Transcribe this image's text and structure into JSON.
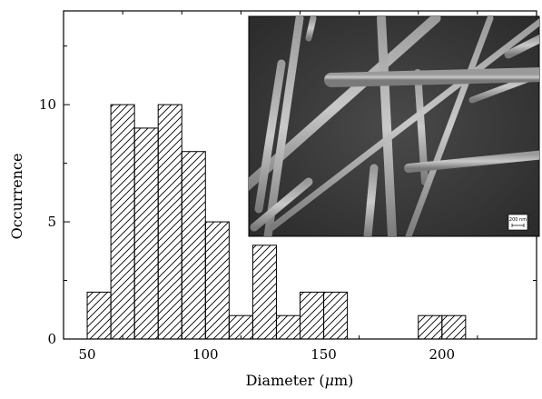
{
  "chart_data": {
    "type": "bar",
    "title": "",
    "xlabel": "Diameter (",
    "xlabel_greek": "μ",
    "xlabel_unit": "m)",
    "ylabel": "Occurrence",
    "xlim": [
      40,
      240
    ],
    "ylim": [
      0,
      14
    ],
    "bin_width": 10,
    "x_ticks": [
      50,
      100,
      150,
      200
    ],
    "y_ticks": [
      0,
      5,
      10
    ],
    "bins": [
      {
        "start": 50,
        "count": 2
      },
      {
        "start": 60,
        "count": 10
      },
      {
        "start": 70,
        "count": 9
      },
      {
        "start": 80,
        "count": 10
      },
      {
        "start": 90,
        "count": 8
      },
      {
        "start": 100,
        "count": 5
      },
      {
        "start": 110,
        "count": 1
      },
      {
        "start": 120,
        "count": 4
      },
      {
        "start": 130,
        "count": 1
      },
      {
        "start": 140,
        "count": 2
      },
      {
        "start": 150,
        "count": 2
      },
      {
        "start": 190,
        "count": 1
      },
      {
        "start": 200,
        "count": 1
      }
    ],
    "bar_fill": "hatched",
    "grid": false,
    "inset": {
      "description_kind": "SEM micrograph of nanowires",
      "scale_bar_label": "200 nm"
    }
  },
  "colors": {
    "axis": "#000000",
    "bar_outline": "#000000",
    "hatch": "#000000",
    "inset_background": "#3a3a3a"
  }
}
